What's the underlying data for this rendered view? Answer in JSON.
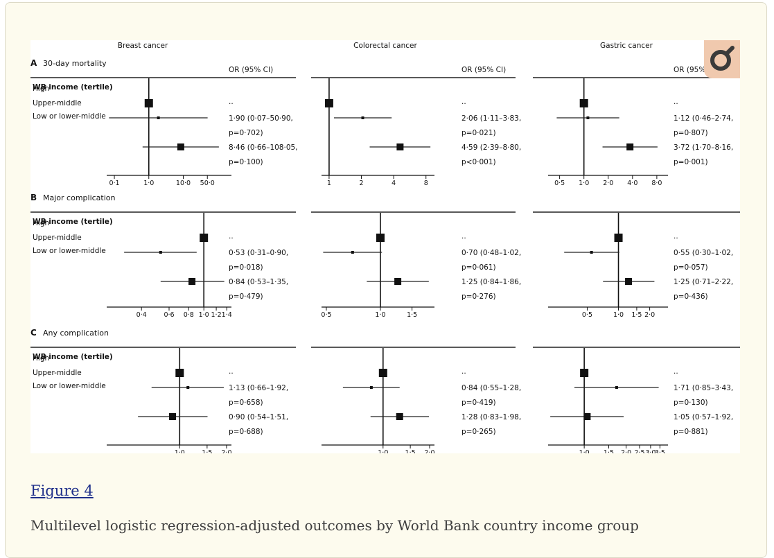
{
  "figure_link": "Figure 4",
  "caption": "Multilevel logistic regression-adjusted outcomes by World Bank country income group",
  "logo_name": "magnifier-icon",
  "chart_data": {
    "type": "forest",
    "columns": [
      "Breast cancer",
      "Colorectal cancer",
      "Gastric cancer"
    ],
    "or_header": "OR (95% CI)",
    "group_header": "WB income (tertile)",
    "rows": [
      "High",
      "Upper-middle",
      "Low or lower-middle"
    ],
    "sections": [
      {
        "letter": "A",
        "title": "30-day mortality",
        "panels": [
          {
            "scale": "log",
            "range": [
              0.06,
              250
            ],
            "ticks": [
              0.1,
              1.0,
              10.0,
              50.0
            ],
            "tick_labels": [
              "0·1",
              "1·0",
              "10·0",
              "50·0"
            ],
            "rows": [
              {
                "or": 1,
                "lo": null,
                "hi": null,
                "label": "··",
                "p": ""
              },
              {
                "or": 1.9,
                "lo": 0.07,
                "hi": 50.9,
                "label": "1·90 (0·07–50·90,",
                "p": "p=0·702)"
              },
              {
                "or": 8.46,
                "lo": 0.66,
                "hi": 108.05,
                "label": "8·46 (0·66–108·05,",
                "p": "p=0·100)"
              }
            ]
          },
          {
            "scale": "log",
            "range": [
              0.85,
              9.6
            ],
            "ticks": [
              1,
              2,
              4,
              8
            ],
            "tick_labels": [
              "1",
              "2",
              "4",
              "8"
            ],
            "rows": [
              {
                "or": 1,
                "lo": null,
                "hi": null,
                "label": "··",
                "p": ""
              },
              {
                "or": 2.06,
                "lo": 1.11,
                "hi": 3.83,
                "label": "2·06 (1·11–3·83,",
                "p": "p=0·021)"
              },
              {
                "or": 4.59,
                "lo": 2.39,
                "hi": 8.8,
                "label": "4·59 (2·39–8·80,",
                "p": "p<0·001)"
              }
            ]
          },
          {
            "scale": "log",
            "range": [
              0.36,
              11
            ],
            "ticks": [
              0.5,
              1.0,
              2.0,
              4.0,
              8.0
            ],
            "tick_labels": [
              "0·5",
              "1·0",
              "2·0",
              "4·0",
              "8·0"
            ],
            "rows": [
              {
                "or": 1,
                "lo": null,
                "hi": null,
                "label": "··",
                "p": ""
              },
              {
                "or": 1.12,
                "lo": 0.46,
                "hi": 2.74,
                "label": "1·12 (0·46–2·74,",
                "p": "p=0·807)"
              },
              {
                "or": 3.72,
                "lo": 1.7,
                "hi": 8.16,
                "label": "3·72 (1·70–8·16,",
                "p": "p=0·001)"
              }
            ]
          }
        ]
      },
      {
        "letter": "B",
        "title": "Major complication",
        "panels": [
          {
            "scale": "log",
            "range": [
              0.24,
              1.5
            ],
            "ticks": [
              0.4,
              0.6,
              0.8,
              1.0,
              1.2,
              1.4
            ],
            "tick_labels": [
              "0·4",
              "0·6",
              "0·8",
              "1·0",
              "1·2",
              "1·4"
            ],
            "rows": [
              {
                "or": 1,
                "lo": null,
                "hi": null,
                "label": "··",
                "p": ""
              },
              {
                "or": 0.53,
                "lo": 0.31,
                "hi": 0.9,
                "label": "0·53 (0·31–0·90,",
                "p": "p=0·018)"
              },
              {
                "or": 0.84,
                "lo": 0.53,
                "hi": 1.35,
                "label": "0·84 (0·53–1·35,",
                "p": "p=0·479)"
              }
            ]
          },
          {
            "scale": "log",
            "range": [
              0.47,
              2.0
            ],
            "ticks": [
              0.5,
              1.0,
              1.5
            ],
            "tick_labels": [
              "0·5",
              "1·0",
              "1·5"
            ],
            "rows": [
              {
                "or": 1,
                "lo": null,
                "hi": null,
                "label": "··",
                "p": ""
              },
              {
                "or": 0.7,
                "lo": 0.48,
                "hi": 1.02,
                "label": "0·70 (0·48–1·02,",
                "p": "p=0·061)"
              },
              {
                "or": 1.25,
                "lo": 0.84,
                "hi": 1.86,
                "label": "1·25 (0·84–1·86,",
                "p": "p=0·276)"
              }
            ]
          },
          {
            "scale": "log",
            "range": [
              0.21,
              3.0
            ],
            "ticks": [
              0.5,
              1.0,
              1.5,
              2.0
            ],
            "tick_labels": [
              "0·5",
              "1·0",
              "1·5",
              "2·0"
            ],
            "rows": [
              {
                "or": 1,
                "lo": null,
                "hi": null,
                "label": "··",
                "p": ""
              },
              {
                "or": 0.55,
                "lo": 0.3,
                "hi": 1.02,
                "label": "0·55 (0·30–1·02,",
                "p": "p=0·057)"
              },
              {
                "or": 1.25,
                "lo": 0.71,
                "hi": 2.22,
                "label": "1·25 (0·71–2·22,",
                "p": "p=0·436)"
              }
            ]
          }
        ]
      },
      {
        "letter": "C",
        "title": "Any complication",
        "panels": [
          {
            "scale": "log",
            "range": [
              0.34,
              2.15
            ],
            "ticks": [
              1.0,
              1.5,
              2.0
            ],
            "tick_labels": [
              "1·0",
              "1·5",
              "2·0"
            ],
            "rows": [
              {
                "or": 1,
                "lo": null,
                "hi": null,
                "label": "··",
                "p": ""
              },
              {
                "or": 1.13,
                "lo": 0.66,
                "hi": 1.92,
                "label": "1·13 (0·66–1·92,",
                "p": "p=0·658)"
              },
              {
                "or": 0.9,
                "lo": 0.54,
                "hi": 1.51,
                "label": "0·90 (0·54–1·51,",
                "p": "p=0·688)"
              }
            ]
          },
          {
            "scale": "log",
            "range": [
              0.4,
              2.15
            ],
            "ticks": [
              1.0,
              1.5,
              2.0
            ],
            "tick_labels": [
              "1·0",
              "1·5",
              "2·0"
            ],
            "rows": [
              {
                "or": 1,
                "lo": null,
                "hi": null,
                "label": "··",
                "p": ""
              },
              {
                "or": 0.84,
                "lo": 0.55,
                "hi": 1.28,
                "label": "0·84 (0·55–1·28,",
                "p": "p=0·419)"
              },
              {
                "or": 1.28,
                "lo": 0.83,
                "hi": 1.98,
                "label": "1·28 (0·83–1·98,",
                "p": "p=0·265)"
              }
            ]
          },
          {
            "scale": "log",
            "range": [
              0.55,
              4.0
            ],
            "ticks": [
              1.0,
              1.5,
              2.0,
              2.5,
              3.0,
              3.5
            ],
            "tick_labels": [
              "1·0",
              "1·5",
              "2·0",
              "2·5",
              "3·0",
              "3·5"
            ],
            "rows": [
              {
                "or": 1,
                "lo": null,
                "hi": null,
                "label": "··",
                "p": ""
              },
              {
                "or": 1.71,
                "lo": 0.85,
                "hi": 3.43,
                "label": "1·71 (0·85–3·43,",
                "p": "p=0·130)"
              },
              {
                "or": 1.05,
                "lo": 0.57,
                "hi": 1.92,
                "label": "1·05 (0·57–1·92,",
                "p": "p=0·881)"
              }
            ]
          }
        ]
      }
    ]
  }
}
